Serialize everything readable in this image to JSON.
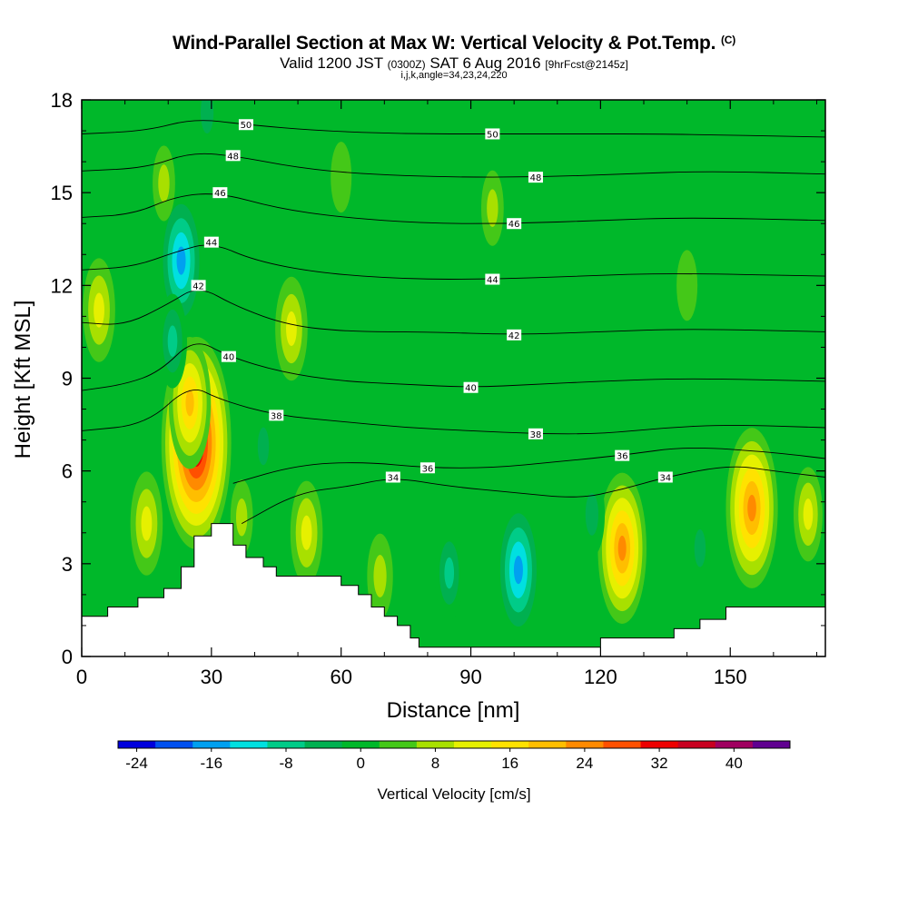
{
  "header": {
    "title": "Wind-Parallel Section at Max W: Vertical Velocity & Pot.Temp.",
    "title_mark": "(C)",
    "valid_prefix": "Valid 1200 JST",
    "valid_utc": "(0300Z)",
    "valid_date": "SAT 6 Aug 2016",
    "forecast": "[9hrFcst@2145z]",
    "indices": "i,j,k,angle=34,23,24,220"
  },
  "chart_data": {
    "type": "heatmap",
    "xlabel": "Distance [nm]",
    "ylabel": "Height [Kft MSL]",
    "xlim": [
      0,
      172
    ],
    "ylim": [
      0,
      18
    ],
    "x_ticks": [
      "0",
      "30",
      "60",
      "90",
      "120",
      "150"
    ],
    "y_ticks": [
      "0",
      "3",
      "6",
      "9",
      "12",
      "15",
      "18"
    ],
    "colorbar": {
      "label": "Vertical Velocity [cm/s]",
      "tick_labels": [
        "-24",
        "-16",
        "-8",
        "0",
        "8",
        "16",
        "24",
        "32",
        "40"
      ],
      "levels": [
        -26,
        -22,
        -18,
        -14,
        -10,
        -6,
        -2,
        2,
        6,
        10,
        14,
        18,
        22,
        26,
        30,
        34,
        38,
        42
      ],
      "colors": [
        "#0000dd",
        "#0050f0",
        "#00a0f0",
        "#00e0e0",
        "#00cc88",
        "#00b050",
        "#00b82a",
        "#44c818",
        "#a8e000",
        "#e6f000",
        "#ffe200",
        "#ffbe00",
        "#ff8a00",
        "#ff5000",
        "#ee0000",
        "#c80020",
        "#a00060",
        "#600090"
      ]
    },
    "background_w": 0,
    "velocity_features": [
      {
        "x": 26.5,
        "y": 6.9,
        "value": 35
      },
      {
        "x": 25,
        "y": 8.2,
        "value": 18
      },
      {
        "x": 23,
        "y": 12.8,
        "value": -20
      },
      {
        "x": 21,
        "y": 10.2,
        "value": -10
      },
      {
        "x": 29,
        "y": 17.6,
        "value": -8
      },
      {
        "x": 15,
        "y": 4.3,
        "value": 12
      },
      {
        "x": 4,
        "y": 11.2,
        "value": 12
      },
      {
        "x": 19,
        "y": 15.3,
        "value": 6
      },
      {
        "x": 48.5,
        "y": 10.6,
        "value": 12
      },
      {
        "x": 52,
        "y": 4.0,
        "value": 12
      },
      {
        "x": 37,
        "y": 4.5,
        "value": 6
      },
      {
        "x": 69,
        "y": 2.6,
        "value": 8
      },
      {
        "x": 85,
        "y": 2.7,
        "value": -10
      },
      {
        "x": 101,
        "y": 2.8,
        "value": -20
      },
      {
        "x": 110,
        "y": 3.5,
        "value": -5
      },
      {
        "x": 125,
        "y": 3.5,
        "value": 22
      },
      {
        "x": 118,
        "y": 4.6,
        "value": -8
      },
      {
        "x": 155,
        "y": 4.8,
        "value": 24
      },
      {
        "x": 168,
        "y": 4.6,
        "value": 10
      },
      {
        "x": 143,
        "y": 3.5,
        "value": -6
      },
      {
        "x": 78,
        "y": 4.8,
        "value": -5
      },
      {
        "x": 42,
        "y": 6.8,
        "value": -6
      },
      {
        "x": 60,
        "y": 15.5,
        "value": 5
      },
      {
        "x": 95,
        "y": 14.5,
        "value": 6
      },
      {
        "x": 140,
        "y": 12.0,
        "value": 5
      }
    ],
    "terrain": [
      [
        0,
        1.3
      ],
      [
        6,
        1.3
      ],
      [
        6,
        1.6
      ],
      [
        13,
        1.6
      ],
      [
        13,
        1.9
      ],
      [
        19,
        1.9
      ],
      [
        19,
        2.2
      ],
      [
        23,
        2.2
      ],
      [
        23,
        2.9
      ],
      [
        26,
        2.9
      ],
      [
        26,
        3.9
      ],
      [
        30,
        3.9
      ],
      [
        30,
        4.3
      ],
      [
        35,
        4.3
      ],
      [
        35,
        3.6
      ],
      [
        38,
        3.6
      ],
      [
        38,
        3.2
      ],
      [
        42,
        3.2
      ],
      [
        42,
        2.9
      ],
      [
        45,
        2.9
      ],
      [
        45,
        2.6
      ],
      [
        60,
        2.6
      ],
      [
        60,
        2.3
      ],
      [
        64,
        2.3
      ],
      [
        64,
        2.0
      ],
      [
        67,
        2.0
      ],
      [
        67,
        1.6
      ],
      [
        70,
        1.6
      ],
      [
        70,
        1.3
      ],
      [
        73,
        1.3
      ],
      [
        73,
        1.0
      ],
      [
        76,
        1.0
      ],
      [
        76,
        0.6
      ],
      [
        78,
        0.6
      ],
      [
        78,
        0.3
      ],
      [
        120,
        0.3
      ],
      [
        120,
        0.6
      ],
      [
        137,
        0.6
      ],
      [
        137,
        0.9
      ],
      [
        143,
        0.9
      ],
      [
        143,
        1.2
      ],
      [
        149,
        1.2
      ],
      [
        149,
        1.6
      ],
      [
        172,
        1.6
      ]
    ],
    "isentropes": [
      {
        "label": "34",
        "points": [
          [
            37,
            4.3
          ],
          [
            50,
            5.3
          ],
          [
            62,
            5.5
          ],
          [
            72,
            5.8
          ],
          [
            85,
            5.5
          ],
          [
            100,
            5.3
          ],
          [
            115,
            5.1
          ],
          [
            125,
            5.4
          ],
          [
            135,
            5.8
          ],
          [
            150,
            6.2
          ],
          [
            160,
            6.0
          ],
          [
            172,
            5.8
          ]
        ]
      },
      {
        "label": "36",
        "points": [
          [
            35,
            5.6
          ],
          [
            50,
            6.2
          ],
          [
            65,
            6.3
          ],
          [
            80,
            6.1
          ],
          [
            95,
            6.1
          ],
          [
            110,
            6.3
          ],
          [
            125,
            6.5
          ],
          [
            140,
            6.8
          ],
          [
            160,
            6.6
          ],
          [
            172,
            6.4
          ]
        ]
      },
      {
        "label": "38",
        "points": [
          [
            0,
            7.3
          ],
          [
            15,
            7.5
          ],
          [
            25,
            8.8
          ],
          [
            32,
            8.3
          ],
          [
            45,
            7.8
          ],
          [
            60,
            7.6
          ],
          [
            75,
            7.4
          ],
          [
            90,
            7.3
          ],
          [
            105,
            7.2
          ],
          [
            120,
            7.2
          ],
          [
            135,
            7.4
          ],
          [
            150,
            7.5
          ],
          [
            172,
            7.4
          ]
        ]
      },
      {
        "label": "40",
        "points": [
          [
            0,
            8.6
          ],
          [
            10,
            8.8
          ],
          [
            18,
            9.2
          ],
          [
            26,
            10.3
          ],
          [
            34,
            9.7
          ],
          [
            46,
            9.2
          ],
          [
            60,
            8.9
          ],
          [
            75,
            8.8
          ],
          [
            90,
            8.7
          ],
          [
            105,
            8.8
          ],
          [
            120,
            8.9
          ],
          [
            140,
            9.0
          ],
          [
            172,
            8.9
          ]
        ]
      },
      {
        "label": "42",
        "points": [
          [
            0,
            10.8
          ],
          [
            10,
            10.7
          ],
          [
            20,
            11.4
          ],
          [
            27,
            12.0
          ],
          [
            36,
            11.3
          ],
          [
            48,
            10.7
          ],
          [
            62,
            10.5
          ],
          [
            80,
            10.5
          ],
          [
            100,
            10.4
          ],
          [
            120,
            10.5
          ],
          [
            140,
            10.6
          ],
          [
            172,
            10.5
          ]
        ]
      },
      {
        "label": "44",
        "points": [
          [
            0,
            12.5
          ],
          [
            12,
            12.6
          ],
          [
            22,
            13.1
          ],
          [
            30,
            13.4
          ],
          [
            40,
            12.8
          ],
          [
            55,
            12.4
          ],
          [
            75,
            12.2
          ],
          [
            95,
            12.2
          ],
          [
            115,
            12.3
          ],
          [
            135,
            12.4
          ],
          [
            172,
            12.3
          ]
        ]
      },
      {
        "label": "46",
        "points": [
          [
            0,
            14.2
          ],
          [
            12,
            14.3
          ],
          [
            22,
            14.9
          ],
          [
            32,
            15.0
          ],
          [
            45,
            14.5
          ],
          [
            60,
            14.2
          ],
          [
            80,
            14.0
          ],
          [
            100,
            14.0
          ],
          [
            120,
            14.1
          ],
          [
            140,
            14.2
          ],
          [
            172,
            14.1
          ]
        ]
      },
      {
        "label": "48",
        "points": [
          [
            0,
            15.7
          ],
          [
            15,
            15.8
          ],
          [
            25,
            16.3
          ],
          [
            35,
            16.2
          ],
          [
            50,
            15.8
          ],
          [
            65,
            15.6
          ],
          [
            85,
            15.5
          ],
          [
            105,
            15.5
          ],
          [
            125,
            15.6
          ],
          [
            145,
            15.7
          ],
          [
            172,
            15.6
          ]
        ]
      },
      {
        "label": "50",
        "points": [
          [
            0,
            16.9
          ],
          [
            15,
            17.0
          ],
          [
            26,
            17.4
          ],
          [
            38,
            17.2
          ],
          [
            55,
            17.0
          ],
          [
            75,
            16.9
          ],
          [
            95,
            16.9
          ],
          [
            115,
            16.9
          ],
          [
            135,
            16.9
          ],
          [
            172,
            16.8
          ]
        ]
      }
    ]
  }
}
